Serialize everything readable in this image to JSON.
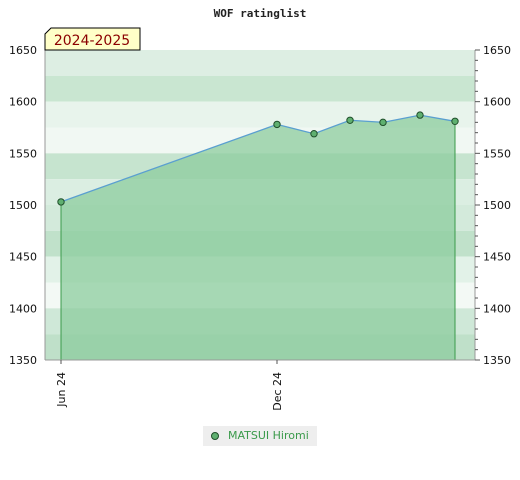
{
  "chart_data": {
    "type": "area",
    "title": "WOF ratinglist",
    "season_label": "2024-2025",
    "ylim": [
      1350,
      1650
    ],
    "y_ticks": [
      1350,
      1400,
      1450,
      1500,
      1550,
      1600,
      1650
    ],
    "x_ticks": [
      "Jun 24",
      "Dec 24"
    ],
    "x": [
      "2024-06",
      "2024-12",
      "2025-01",
      "2025-02",
      "2025-03",
      "2025-04",
      "2025-05"
    ],
    "series": [
      {
        "name": "MATSUI Hiromi",
        "values": [
          1503,
          1578,
          1569,
          1582,
          1580,
          1587,
          1581
        ]
      }
    ],
    "grid": true,
    "legend_position": "bottom-center",
    "colors": {
      "fill": "#8ccc9e",
      "line": "#5a9fd0",
      "marker": "#5fb070",
      "marker_edge": "#1f4f2a"
    }
  }
}
